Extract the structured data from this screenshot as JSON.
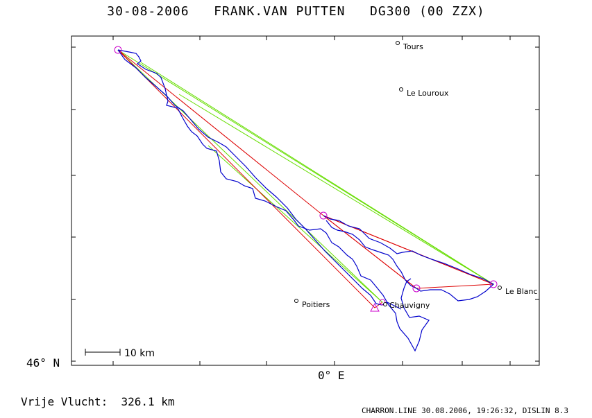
{
  "header": {
    "date": "30-08-2006",
    "pilot": "FRANK.VAN PUTTEN",
    "glider": "DG300 (00 ZZX)"
  },
  "axes": {
    "latitude_label": "46° N",
    "longitude_label": "0° E"
  },
  "scale_bar": {
    "label": "10 km"
  },
  "summary": {
    "label": "Vrije Vlucht:",
    "distance": "326.1 km"
  },
  "footer": {
    "text": "CHARRON.LINE 30.08.2006, 19:26:32, DISLIN 8.3"
  },
  "colors": {
    "frame": "#000000",
    "track": "#0000cc",
    "task_line": "#dd0000",
    "optimized_line": "#66dd00",
    "turnpoint_marker": "#cc00cc"
  },
  "towns": [
    {
      "name": "Tours"
    },
    {
      "name": "Le Louroux"
    },
    {
      "name": "Poitiers"
    },
    {
      "name": "Chauvigny"
    },
    {
      "name": "Le Blanc"
    }
  ]
}
